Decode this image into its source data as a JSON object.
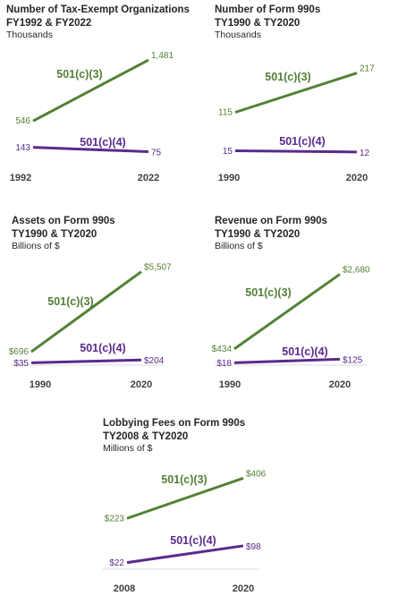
{
  "colors": {
    "c3": "#538135",
    "c4": "#5b2a8c",
    "axis": "#d9d9d9",
    "text": "#262626"
  },
  "chart_data": [
    {
      "type": "line",
      "title": "Number of Tax-Exempt Organizations",
      "title2": "FY1992 & FY2022",
      "subtitle": "Thousands",
      "categories": [
        "1992",
        "2022"
      ],
      "series": [
        {
          "name": "501(c)(3)",
          "values": [
            546,
            1481
          ],
          "labels": [
            "546",
            "1,481"
          ]
        },
        {
          "name": "501(c)(4)",
          "values": [
            143,
            75
          ],
          "labels": [
            "143",
            "75"
          ]
        }
      ]
    },
    {
      "type": "line",
      "title": "Number of Form 990s",
      "title2": "TY1990 & TY2020",
      "subtitle": "Thousands",
      "categories": [
        "1990",
        "2020"
      ],
      "series": [
        {
          "name": "501(c)(3)",
          "values": [
            115,
            217
          ],
          "labels": [
            "115",
            "217"
          ]
        },
        {
          "name": "501(c)(4)",
          "values": [
            15,
            12
          ],
          "labels": [
            "15",
            "12"
          ]
        }
      ]
    },
    {
      "type": "line",
      "title": "Assets on Form 990s",
      "title2": "TY1990 & TY2020",
      "subtitle": "Billions of $",
      "categories": [
        "1990",
        "2020"
      ],
      "series": [
        {
          "name": "501(c)(3)",
          "values": [
            696,
            5507
          ],
          "labels": [
            "$696",
            "$5,507"
          ]
        },
        {
          "name": "501(c)(4)",
          "values": [
            35,
            204
          ],
          "labels": [
            "$35",
            "$204"
          ]
        }
      ]
    },
    {
      "type": "line",
      "title": "Revenue on Form 990s",
      "title2": "TY1990 & TY2020",
      "subtitle": "Billions of $",
      "categories": [
        "1990",
        "2020"
      ],
      "series": [
        {
          "name": "501(c)(3)",
          "values": [
            434,
            2680
          ],
          "labels": [
            "$434",
            "$2,680"
          ]
        },
        {
          "name": "501(c)(4)",
          "values": [
            18,
            125
          ],
          "labels": [
            "$18",
            "$125"
          ]
        }
      ]
    },
    {
      "type": "line",
      "title": "Lobbying Fees on Form 990s",
      "title2": "TY2008 & TY2020",
      "subtitle": "Millions of $",
      "categories": [
        "2008",
        "2020"
      ],
      "series": [
        {
          "name": "501(c)(3)",
          "values": [
            223,
            406
          ],
          "labels": [
            "$223",
            "$406"
          ]
        },
        {
          "name": "501(c)(4)",
          "values": [
            22,
            98
          ],
          "labels": [
            "$22",
            "$98"
          ]
        }
      ]
    }
  ]
}
